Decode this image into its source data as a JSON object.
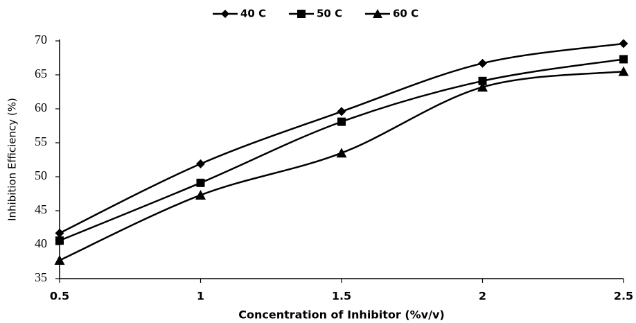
{
  "chart_data": {
    "type": "line",
    "x_label": "Concentration of Inhibitor (%v/v)",
    "y_label": "Inhibition Efficiency (%)",
    "x": [
      0.5,
      1,
      1.5,
      2,
      2.5
    ],
    "series": [
      {
        "name": "40 C",
        "color": "#000000",
        "marker": "diamond",
        "values": [
          41.7,
          51.9,
          59.6,
          66.7,
          69.6
        ]
      },
      {
        "name": "50 C",
        "color": "#000000",
        "marker": "square",
        "values": [
          40.6,
          49.1,
          58.1,
          64.1,
          67.3
        ]
      },
      {
        "name": "60 C",
        "color": "#000000",
        "marker": "triangle",
        "values": [
          37.7,
          47.3,
          53.5,
          63.2,
          65.5
        ]
      }
    ],
    "xlim": [
      0.5,
      2.5
    ],
    "xticks": [
      0.5,
      1,
      1.5,
      2,
      2.5
    ],
    "ylim": [
      35,
      70
    ],
    "yticks": [
      35,
      40,
      45,
      50,
      55,
      60,
      65,
      70
    ],
    "grid": false,
    "legend": "top"
  }
}
